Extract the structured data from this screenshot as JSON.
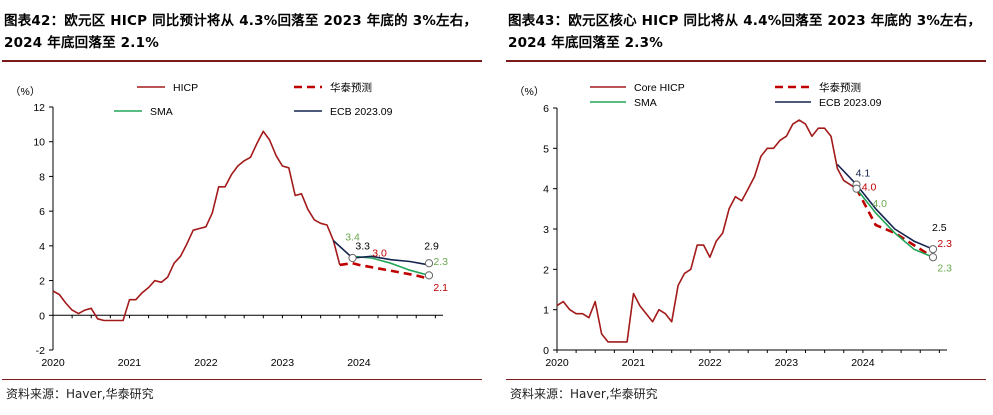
{
  "panels": [
    {
      "title": "图表42：欧元区 HICP 同比预计将从 4.3%回落至 2023 年底的 3%左右，2024 年底回落至 2.1%",
      "source": "资料来源：Haver,华泰研究",
      "chart_data": {
        "type": "line",
        "ylabel": "（%）",
        "ylim": [
          -2,
          12
        ],
        "yticks": [
          "-2",
          "0",
          "2",
          "4",
          "6",
          "8",
          "10",
          "12"
        ],
        "xlim": [
          2020,
          2025.1
        ],
        "xticks": [
          "2020",
          "2021",
          "2022",
          "2023",
          "2024"
        ],
        "grid": false,
        "legend": [
          "HICP",
          "华泰预测",
          "SMA",
          "ECB 2023.09"
        ],
        "legend_position": "top",
        "series": [
          {
            "name": "HICP",
            "style": "solid",
            "color": "#a31a1a",
            "x": [
              2020.0,
              2020.083,
              2020.167,
              2020.25,
              2020.333,
              2020.417,
              2020.5,
              2020.583,
              2020.667,
              2020.75,
              2020.833,
              2020.917,
              2021.0,
              2021.083,
              2021.167,
              2021.25,
              2021.333,
              2021.417,
              2021.5,
              2021.583,
              2021.667,
              2021.75,
              2021.833,
              2021.917,
              2022.0,
              2022.083,
              2022.167,
              2022.25,
              2022.333,
              2022.417,
              2022.5,
              2022.583,
              2022.667,
              2022.75,
              2022.833,
              2022.917,
              2023.0,
              2023.083,
              2023.167,
              2023.25,
              2023.333,
              2023.417,
              2023.5,
              2023.583,
              2023.667,
              2023.75
            ],
            "y": [
              1.4,
              1.2,
              0.7,
              0.3,
              0.1,
              0.3,
              0.4,
              -0.2,
              -0.3,
              -0.3,
              -0.3,
              -0.3,
              0.9,
              0.9,
              1.3,
              1.6,
              2.0,
              1.9,
              2.2,
              3.0,
              3.4,
              4.1,
              4.9,
              5.0,
              5.1,
              5.9,
              7.4,
              7.4,
              8.1,
              8.6,
              8.9,
              9.1,
              9.9,
              10.6,
              10.1,
              9.2,
              8.6,
              8.5,
              6.9,
              7.0,
              6.1,
              5.5,
              5.3,
              5.2,
              4.3,
              2.9
            ]
          },
          {
            "name": "华泰预测",
            "style": "dashed",
            "color": "#c00000",
            "x": [
              2023.75,
              2023.917,
              2024.0,
              2024.25,
              2024.5,
              2024.75,
              2024.917
            ],
            "y": [
              2.9,
              3.0,
              2.9,
              2.7,
              2.5,
              2.3,
              2.1
            ]
          },
          {
            "name": "SMA",
            "style": "solid",
            "color": "#22a559",
            "x": [
              2023.917,
              2024.167,
              2024.417,
              2024.667,
              2024.917
            ],
            "y": [
              3.4,
              3.3,
              3.0,
              2.6,
              2.3
            ]
          },
          {
            "name": "ECB 2023.09",
            "style": "solid",
            "color": "#14234f",
            "x": [
              2023.667,
              2023.917,
              2024.167,
              2024.417,
              2024.667,
              2024.917
            ],
            "y": [
              4.3,
              3.3,
              3.4,
              3.2,
              3.1,
              2.9
            ]
          }
        ],
        "annotations": [
          {
            "text": "3.4",
            "x": 2023.917,
            "y": 4.3,
            "color": "#6aa84f"
          },
          {
            "text": "3.3",
            "x": 2024.05,
            "y": 3.8,
            "color": "#000000"
          },
          {
            "text": "3.0",
            "x": 2024.27,
            "y": 3.4,
            "color": "#c00000"
          },
          {
            "text": "2.9",
            "x": 2024.95,
            "y": 3.8,
            "color": "#000000"
          },
          {
            "text": "2.3",
            "x": 2025.07,
            "y": 2.9,
            "color": "#6aa84f"
          },
          {
            "text": "2.1",
            "x": 2025.07,
            "y": 1.4,
            "color": "#c00000"
          }
        ],
        "markers": [
          {
            "x": 2023.917,
            "y": 3.3
          },
          {
            "x": 2024.917,
            "y": 3.0
          },
          {
            "x": 2024.917,
            "y": 2.3
          }
        ]
      }
    },
    {
      "title": "图表43：欧元区核心 HICP 同比将从 4.4%回落至 2023 年底的 3%左右，2024 年底回落至 2.3%",
      "source": "资料来源：Haver,华泰研究",
      "chart_data": {
        "type": "line",
        "ylabel": "（%）",
        "ylim": [
          0,
          6
        ],
        "yticks": [
          "0",
          "1",
          "2",
          "3",
          "4",
          "5",
          "6"
        ],
        "xlim": [
          2020,
          2025.1
        ],
        "xticks": [
          "2020",
          "2021",
          "2022",
          "2023",
          "2024"
        ],
        "grid": false,
        "legend": [
          "Core HICP",
          "华泰预测",
          "SMA",
          "ECB 2023.09"
        ],
        "legend_position": "top",
        "series": [
          {
            "name": "Core HICP",
            "style": "solid",
            "color": "#a31a1a",
            "x": [
              2020.0,
              2020.083,
              2020.167,
              2020.25,
              2020.333,
              2020.417,
              2020.5,
              2020.583,
              2020.667,
              2020.75,
              2020.833,
              2020.917,
              2021.0,
              2021.083,
              2021.167,
              2021.25,
              2021.333,
              2021.417,
              2021.5,
              2021.583,
              2021.667,
              2021.75,
              2021.833,
              2021.917,
              2022.0,
              2022.083,
              2022.167,
              2022.25,
              2022.333,
              2022.417,
              2022.5,
              2022.583,
              2022.667,
              2022.75,
              2022.833,
              2022.917,
              2023.0,
              2023.083,
              2023.167,
              2023.25,
              2023.333,
              2023.417,
              2023.5,
              2023.583,
              2023.667,
              2023.75,
              2023.833,
              2023.917
            ],
            "y": [
              1.1,
              1.2,
              1.0,
              0.9,
              0.9,
              0.8,
              1.2,
              0.4,
              0.2,
              0.2,
              0.2,
              0.2,
              1.4,
              1.1,
              0.9,
              0.7,
              1.0,
              0.9,
              0.7,
              1.6,
              1.9,
              2.0,
              2.6,
              2.6,
              2.3,
              2.7,
              2.9,
              3.5,
              3.8,
              3.7,
              4.0,
              4.3,
              4.8,
              5.0,
              5.0,
              5.2,
              5.3,
              5.6,
              5.7,
              5.6,
              5.3,
              5.5,
              5.5,
              5.3,
              4.5,
              4.2,
              4.1,
              4.0
            ]
          },
          {
            "name": "华泰预测",
            "style": "dashed",
            "color": "#c00000",
            "x": [
              2023.917,
              2024.167,
              2024.417,
              2024.667,
              2024.917
            ],
            "y": [
              4.0,
              3.1,
              2.9,
              2.6,
              2.3
            ]
          },
          {
            "name": "SMA",
            "style": "solid",
            "color": "#22a559",
            "x": [
              2023.917,
              2024.167,
              2024.417,
              2024.667,
              2024.917
            ],
            "y": [
              4.0,
              3.4,
              2.9,
              2.5,
              2.3
            ]
          },
          {
            "name": "ECB 2023.09",
            "style": "solid",
            "color": "#14234f",
            "x": [
              2023.667,
              2023.917,
              2024.167,
              2024.417,
              2024.667,
              2024.917
            ],
            "y": [
              4.6,
              4.1,
              3.5,
              3.0,
              2.7,
              2.5
            ]
          }
        ],
        "annotations": [
          {
            "text": "4.1",
            "x": 2024.0,
            "y": 4.3,
            "color": "#14234f"
          },
          {
            "text": "4.0",
            "x": 2024.08,
            "y": 3.95,
            "color": "#c00000"
          },
          {
            "text": "4.0",
            "x": 2024.22,
            "y": 3.55,
            "color": "#6aa84f"
          },
          {
            "text": "2.5",
            "x": 2025.0,
            "y": 2.95,
            "color": "#000000"
          },
          {
            "text": "2.3",
            "x": 2025.07,
            "y": 2.55,
            "color": "#c00000"
          },
          {
            "text": "2.3",
            "x": 2025.07,
            "y": 1.95,
            "color": "#6aa84f"
          }
        ],
        "markers": [
          {
            "x": 2023.917,
            "y": 4.1
          },
          {
            "x": 2023.917,
            "y": 4.0
          },
          {
            "x": 2024.917,
            "y": 2.5
          },
          {
            "x": 2024.917,
            "y": 2.3
          }
        ]
      }
    }
  ]
}
